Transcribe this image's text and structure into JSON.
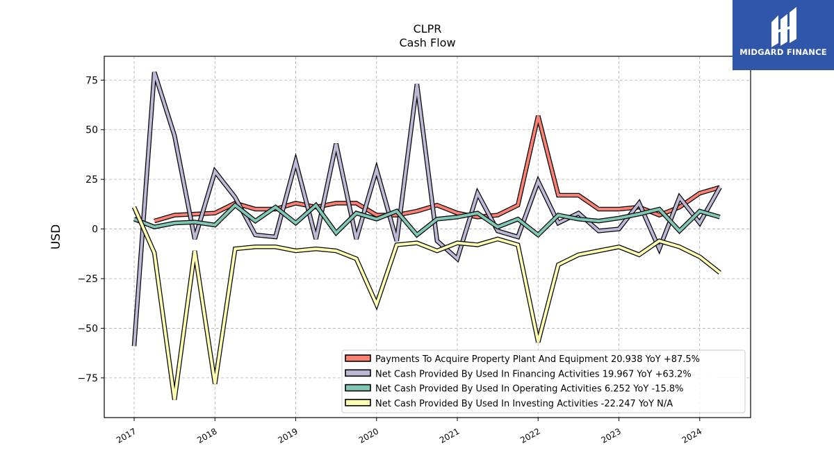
{
  "logo": {
    "text": "MIDGARD FINANCE"
  },
  "chart_data": {
    "type": "line",
    "title": "CLPR",
    "subtitle": "Cash Flow",
    "ylabel": "USD",
    "xlabel": "",
    "ylim": [
      -95,
      87
    ],
    "xlim": [
      2016.63,
      2024.63
    ],
    "yticks": [
      75,
      50,
      25,
      0,
      -25,
      -50,
      -75
    ],
    "ytick_labels": [
      "75",
      "50",
      "25",
      "0",
      "−25",
      "−50",
      "−75"
    ],
    "xticks": [
      2017,
      2018,
      2019,
      2020,
      2021,
      2022,
      2023,
      2024
    ],
    "xtick_labels": [
      "2017",
      "2018",
      "2019",
      "2020",
      "2021",
      "2022",
      "2023",
      "2024"
    ],
    "grid": true,
    "legend_position": "lower-right",
    "x": [
      2017.0,
      2017.25,
      2017.5,
      2017.75,
      2018.0,
      2018.25,
      2018.5,
      2018.75,
      2019.0,
      2019.25,
      2019.5,
      2019.75,
      2020.0,
      2020.25,
      2020.5,
      2020.75,
      2021.0,
      2021.25,
      2021.5,
      2021.75,
      2022.0,
      2022.25,
      2022.5,
      2022.75,
      2023.0,
      2023.25,
      2023.5,
      2023.75,
      2024.0,
      2024.25
    ],
    "series": [
      {
        "name": "Payments To Acquire Property Plant And Equipment  20.938 YoY +87.5%",
        "color": "#fa8072",
        "values": [
          null,
          4,
          7,
          7.5,
          8,
          13,
          10,
          10,
          13,
          11,
          13,
          13,
          7,
          7,
          9,
          12,
          8,
          6,
          7,
          12,
          57,
          17,
          17,
          10,
          10,
          11,
          7,
          11,
          18,
          21
        ]
      },
      {
        "name": "Net Cash Provided By Used In Financing Activities  19.967 YoY +63.2%",
        "color": "#bcb8d6",
        "values": [
          -59,
          79,
          47,
          -5,
          29,
          16,
          -3,
          -4,
          34,
          -5,
          43,
          -5,
          30,
          -6,
          73,
          -6,
          -15,
          18,
          -1,
          -4,
          24,
          3,
          8,
          -1,
          0,
          13,
          -10,
          16,
          3,
          21
        ]
      },
      {
        "name": "Net Cash Provided By Used In Operating Activities  6.252 YoY -15.8%",
        "color": "#80c7b6",
        "values": [
          5,
          1,
          3,
          3.5,
          2,
          12,
          4,
          11,
          3,
          12,
          -2,
          8,
          5,
          9,
          -3,
          5,
          6,
          8,
          1,
          5,
          -3,
          7,
          5,
          4,
          5.5,
          7.5,
          10,
          -1,
          9,
          6
        ]
      },
      {
        "name": "Net Cash Provided By Used In Investing Activities  -22.247 YoY N/A",
        "color": "#ffffb3",
        "values": [
          11,
          -12,
          -86,
          -11,
          -78,
          -10,
          -9,
          -9,
          -11,
          -10,
          -11,
          -15,
          -38,
          -8,
          -7,
          -11,
          -7,
          -8,
          -5,
          -8,
          -57,
          -18,
          -13,
          -11,
          -9,
          -13,
          -6,
          -9,
          -14,
          -22
        ]
      }
    ]
  }
}
